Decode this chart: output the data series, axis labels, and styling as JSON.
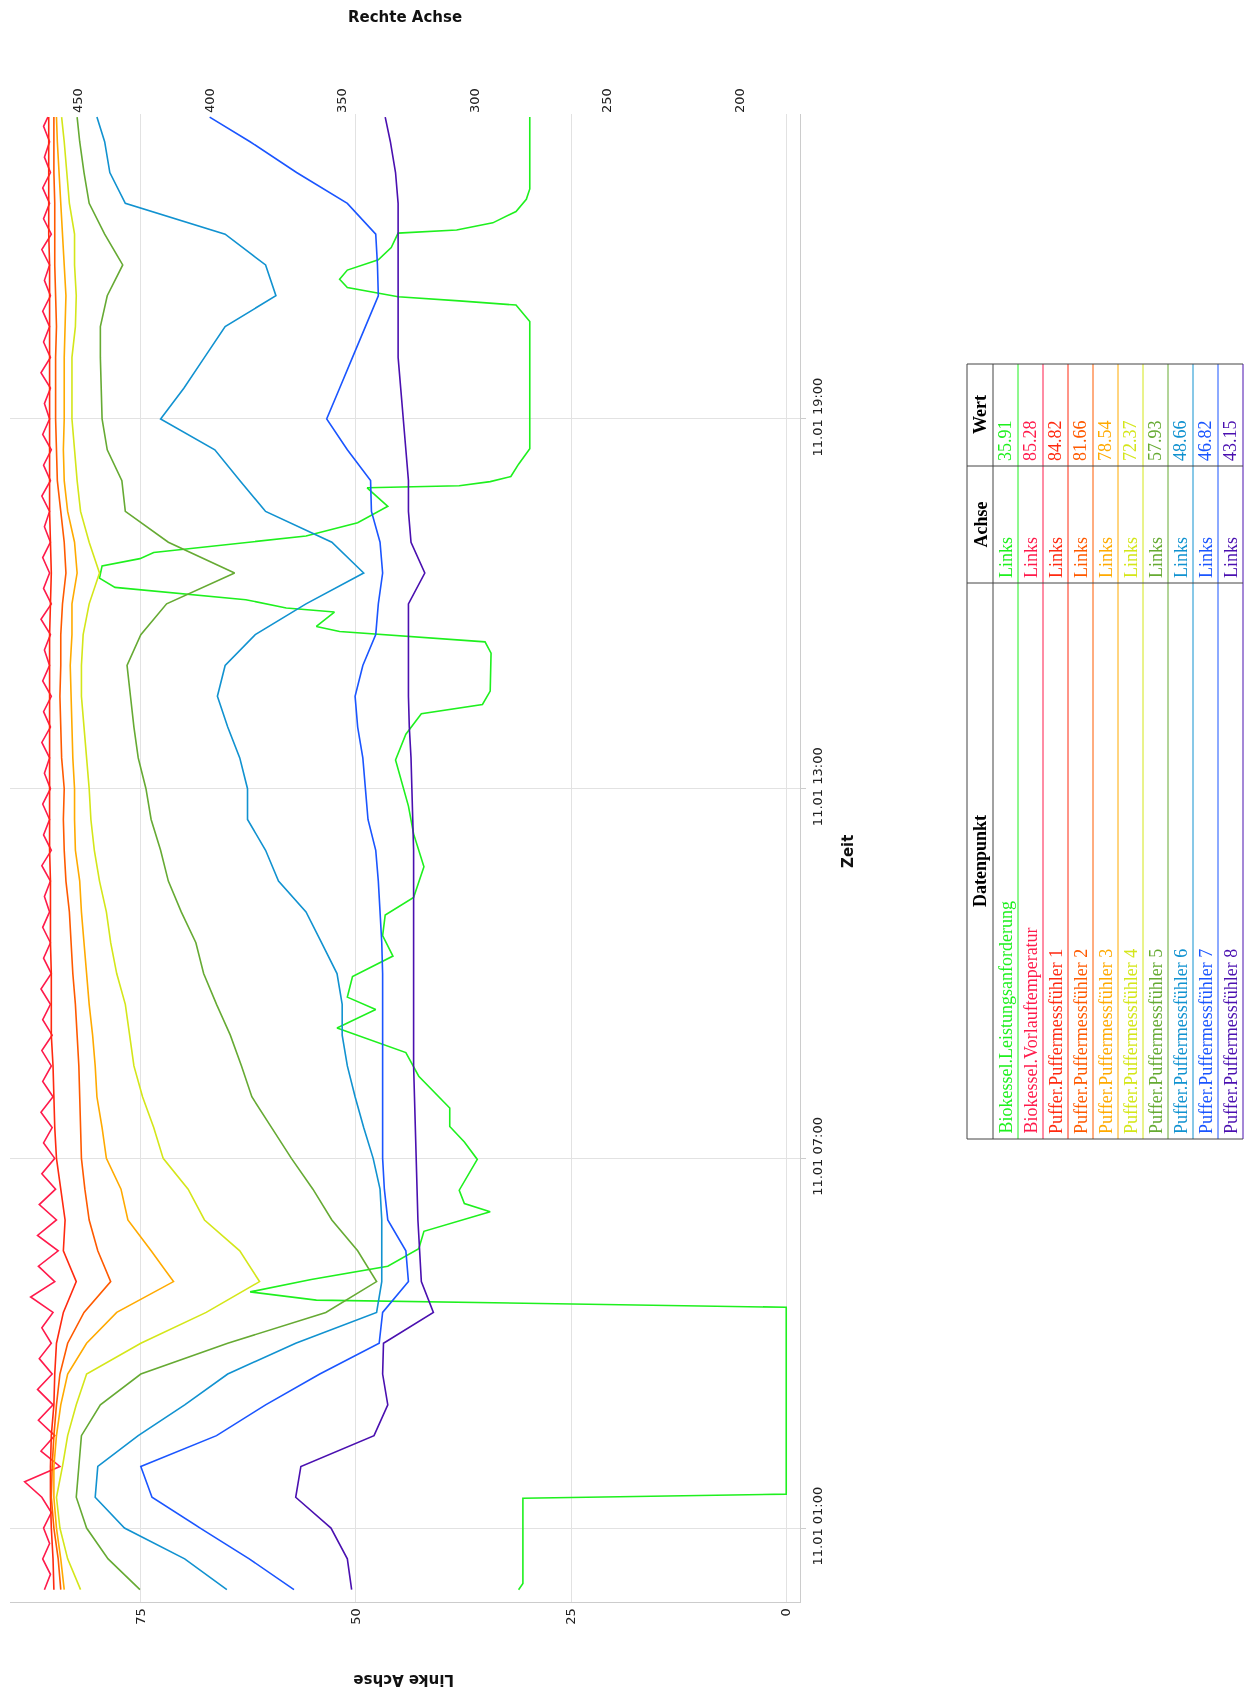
{
  "chart_data": {
    "type": "line",
    "orientation": "horizontal",
    "xlabel": "Linke Achse",
    "x2label": "Rechte Achse",
    "ylabel": "Zeit",
    "xlim": [
      90.2,
      -1.6
    ],
    "xticks": [
      0,
      25,
      50,
      75
    ],
    "x2lim": [
      475.4,
      177.2
    ],
    "x2ticks": [
      450,
      400,
      350,
      300,
      250,
      200
    ],
    "ylim": [
      "--01-10T23:48",
      "--01-11T23:57"
    ],
    "yticks": [
      {
        "value": "--01-11T01:00",
        "label": "11.01 01:00"
      },
      {
        "value": "--01-11T07:00",
        "label": "11.01 07:00"
      },
      {
        "value": "--01-11T13:00",
        "label": "11.01 13:00"
      },
      {
        "value": "--01-11T19:00",
        "label": "11.01 19:00"
      }
    ],
    "grid": true,
    "x": [
      "--01-11T00:00",
      "--01-11T00:30",
      "--01-11T01:00",
      "--01-11T01:30",
      "--01-11T02:00",
      "--01-11T02:30",
      "--01-11T03:00",
      "--01-11T03:30",
      "--01-11T04:00",
      "--01-11T04:30",
      "--01-11T05:00",
      "--01-11T05:30",
      "--01-11T06:00",
      "--01-11T06:30",
      "--01-11T07:00",
      "--01-11T07:30",
      "--01-11T08:00",
      "--01-11T08:30",
      "--01-11T09:00",
      "--01-11T09:30",
      "--01-11T10:00",
      "--01-11T10:30",
      "--01-11T11:00",
      "--01-11T11:30",
      "--01-11T12:00",
      "--01-11T12:30",
      "--01-11T13:00",
      "--01-11T13:30",
      "--01-11T14:00",
      "--01-11T14:30",
      "--01-11T15:00",
      "--01-11T15:30",
      "--01-11T16:00",
      "--01-11T16:30",
      "--01-11T17:00",
      "--01-11T17:30",
      "--01-11T18:00",
      "--01-11T18:30",
      "--01-11T19:00",
      "--01-11T19:30",
      "--01-11T20:00",
      "--01-11T20:30",
      "--01-11T21:00",
      "--01-11T21:30",
      "--01-11T22:00",
      "--01-11T22:30",
      "--01-11T23:00",
      "--01-11T23:30",
      "--01-11T23:54"
    ],
    "series": [
      {
        "name": "Biokessel.Leistungsanforderung",
        "color": "#1ef01e",
        "x": [
          "--01-11T00:00",
          "--01-11T00:06",
          "--01-11T01:29",
          "--01-11T01:33",
          "--01-11T04:35",
          "--01-11T04:42",
          "--01-11T04:50",
          "--01-11T05:02",
          "--01-11T05:15",
          "--01-11T05:32",
          "--01-11T05:49",
          "--01-11T06:08",
          "--01-11T06:16",
          "--01-11T06:29",
          "--01-11T06:59",
          "--01-11T07:16",
          "--01-11T07:31",
          "--01-11T07:49",
          "--01-11T08:20",
          "--01-11T08:43",
          "--01-11T09:07",
          "--01-11T09:25",
          "--01-11T09:37",
          "--01-11T09:57",
          "--01-11T10:17",
          "--01-11T10:37",
          "--01-11T10:57",
          "--01-11T11:14",
          "--01-11T11:44",
          "--01-11T12:16",
          "--01-11T12:43",
          "--01-11T13:28",
          "--01-11T13:53",
          "--01-11T14:13",
          "--01-11T14:22",
          "--01-11T14:35",
          "--01-11T15:12",
          "--01-11T15:23",
          "--01-11T15:33",
          "--01-11T15:38",
          "--01-11T15:52",
          "--01-11T15:56",
          "--01-11T16:04",
          "--01-11T16:16",
          "--01-11T16:25",
          "--01-11T16:37",
          "--01-11T16:44",
          "--01-11T16:50",
          "--01-11T17:06",
          "--01-11T17:19",
          "--01-11T17:35",
          "--01-11T17:53",
          "--01-11T17:55",
          "--01-11T17:59",
          "--01-11T18:04",
          "--01-11T18:16",
          "--01-11T18:31",
          "--01-11T20:35",
          "--01-11T20:51",
          "--01-11T20:55",
          "--01-11T20:59",
          "--01-11T21:08",
          "--01-11T21:16",
          "--01-11T21:25",
          "--01-11T21:35",
          "--01-11T21:47",
          "--01-11T22:01",
          "--01-11T22:04",
          "--01-11T22:11",
          "--01-11T22:22",
          "--01-11T22:34",
          "--01-11T22:44",
          "--01-11T23:54"
        ],
        "values": [
          31.1,
          30.6,
          30.6,
          0,
          0,
          54.6,
          62.3,
          55.2,
          46.3,
          42.7,
          42.1,
          34.4,
          37.4,
          38.0,
          35.9,
          37.4,
          39.1,
          39.1,
          42.7,
          44.2,
          52.2,
          47.7,
          51.0,
          50.4,
          45.7,
          46.9,
          46.6,
          43.3,
          42.1,
          43.3,
          43.9,
          45.4,
          44.2,
          42.4,
          35.3,
          34.4,
          34.3,
          35.0,
          51.9,
          54.6,
          52.5,
          58.1,
          62.8,
          78.0,
          79.8,
          79.5,
          75.1,
          73.5,
          55.8,
          49.8,
          46.3,
          48.7,
          38.0,
          34.4,
          32.0,
          31.1,
          29.8,
          29.8,
          31.4,
          38.0,
          45.1,
          51.0,
          51.9,
          51.0,
          47.4,
          45.9,
          45.1,
          38.3,
          34.1,
          31.4,
          30.2,
          29.8,
          29.8
        ]
      },
      {
        "name": "Biokessel.Vorlauftemperatur",
        "color": "#ff1a4b",
        "x": [
          "--01-11T00:00",
          "--01-11T00:15",
          "--01-11T00:30",
          "--01-11T00:45",
          "--01-11T01:00",
          "--01-11T01:15",
          "--01-11T01:30",
          "--01-11T01:45",
          "--01-11T02:00",
          "--01-11T02:15",
          "--01-11T02:30",
          "--01-11T02:45",
          "--01-11T03:00",
          "--01-11T03:15",
          "--01-11T03:30",
          "--01-11T03:45",
          "--01-11T04:00",
          "--01-11T04:15",
          "--01-11T04:30",
          "--01-11T04:45",
          "--01-11T05:00",
          "--01-11T05:15",
          "--01-11T05:30",
          "--01-11T05:45",
          "--01-11T06:00",
          "--01-11T06:15",
          "--01-11T06:30",
          "--01-11T06:45",
          "--01-11T07:00",
          "--01-11T07:15",
          "--01-11T07:30",
          "--01-11T07:45",
          "--01-11T08:00",
          "--01-11T08:15",
          "--01-11T08:30",
          "--01-11T08:45",
          "--01-11T09:00",
          "--01-11T09:15",
          "--01-11T09:30",
          "--01-11T09:45",
          "--01-11T10:00",
          "--01-11T10:15",
          "--01-11T10:30",
          "--01-11T10:45",
          "--01-11T11:00",
          "--01-11T11:15",
          "--01-11T11:30",
          "--01-11T11:45",
          "--01-11T12:00",
          "--01-11T12:15",
          "--01-11T12:30",
          "--01-11T12:45",
          "--01-11T13:00",
          "--01-11T13:15",
          "--01-11T13:30",
          "--01-11T13:45",
          "--01-11T14:00",
          "--01-11T14:15",
          "--01-11T14:30",
          "--01-11T14:45",
          "--01-11T15:00",
          "--01-11T15:15",
          "--01-11T15:30",
          "--01-11T15:45",
          "--01-11T16:00",
          "--01-11T16:15",
          "--01-11T16:30",
          "--01-11T16:45",
          "--01-11T17:00",
          "--01-11T17:15",
          "--01-11T17:30",
          "--01-11T17:45",
          "--01-11T18:00",
          "--01-11T18:15",
          "--01-11T18:30",
          "--01-11T18:45",
          "--01-11T19:00",
          "--01-11T19:15",
          "--01-11T19:30",
          "--01-11T19:45",
          "--01-11T20:00",
          "--01-11T20:15",
          "--01-11T20:30",
          "--01-11T20:45",
          "--01-11T21:00",
          "--01-11T21:15",
          "--01-11T21:30",
          "--01-11T21:45",
          "--01-11T22:00",
          "--01-11T22:15",
          "--01-11T22:30",
          "--01-11T22:45",
          "--01-11T23:00",
          "--01-11T23:15",
          "--01-11T23:30",
          "--01-11T23:45",
          "--01-11T23:54"
        ],
        "values": [
          86.2,
          85.5,
          86.4,
          85.6,
          86.3,
          85.4,
          86.5,
          88.5,
          84.4,
          86.6,
          85.0,
          86.9,
          85.2,
          87.0,
          85.3,
          86.8,
          85.4,
          86.5,
          85.2,
          87.8,
          85.0,
          86.9,
          84.6,
          87.0,
          84.8,
          86.8,
          84.9,
          86.5,
          85.0,
          86.3,
          85.3,
          86.6,
          85.2,
          86.4,
          85.4,
          86.5,
          85.3,
          86.4,
          85.5,
          86.6,
          85.4,
          86.3,
          85.5,
          86.4,
          85.6,
          86.2,
          85.5,
          86.5,
          85.4,
          86.3,
          85.6,
          86.4,
          85.5,
          86.2,
          85.6,
          86.5,
          85.5,
          86.3,
          85.4,
          86.4,
          85.6,
          86.2,
          85.5,
          86.6,
          85.4,
          86.3,
          85.6,
          86.4,
          85.5,
          86.2,
          85.6,
          86.5,
          85.5,
          86.3,
          85.4,
          86.4,
          85.6,
          86.2,
          85.5,
          86.6,
          85.5,
          86.3,
          85.6,
          86.4,
          85.5,
          86.2,
          85.6,
          86.5,
          85.4,
          86.3,
          85.6,
          86.4,
          85.5,
          86.2,
          85.6,
          86.3,
          85.8
        ]
      },
      {
        "name": "Puffer.Puffermessfühler 1",
        "color": "#ff2a10",
        "values": [
          85.1,
          85.2,
          85.4,
          85.5,
          85.5,
          85.4,
          85.1,
          85.0,
          84.8,
          84.0,
          82.5,
          84.0,
          83.8,
          84.3,
          84.8,
          85.0,
          85.1,
          85.2,
          85.4,
          85.4,
          85.4,
          85.5,
          85.5,
          85.5,
          85.6,
          85.6,
          85.6,
          85.6,
          85.6,
          85.6,
          85.6,
          85.6,
          85.5,
          85.4,
          85.5,
          85.6,
          85.6,
          85.6,
          85.6,
          85.6,
          85.6,
          85.6,
          85.6,
          85.6,
          85.7,
          85.7,
          85.7,
          85.7,
          85.7
        ]
      },
      {
        "name": "Puffer.Puffermessfühler 2",
        "color": "#ff5a00",
        "values": [
          84.3,
          84.6,
          85.1,
          85.4,
          85.3,
          85.1,
          84.8,
          84.4,
          83.5,
          81.6,
          78.5,
          80.0,
          81.0,
          81.5,
          81.9,
          82.0,
          82.1,
          82.2,
          82.4,
          82.6,
          82.9,
          83.1,
          83.3,
          83.7,
          83.9,
          84.0,
          83.9,
          84.2,
          84.3,
          84.4,
          84.3,
          84.3,
          84.1,
          83.7,
          83.9,
          84.3,
          84.7,
          84.8,
          84.9,
          84.9,
          84.9,
          84.8,
          84.9,
          85.0,
          85.0,
          85.0,
          85.1,
          85.1,
          85.1
        ]
      },
      {
        "name": "Puffer.Puffermessfühler 3",
        "color": "#ffaa00",
        "values": [
          83.9,
          84.3,
          84.8,
          85.1,
          85.1,
          84.8,
          84.3,
          83.5,
          81.3,
          77.8,
          71.2,
          73.8,
          76.5,
          77.3,
          79.0,
          79.5,
          80.1,
          80.3,
          80.6,
          81.0,
          81.3,
          81.6,
          81.9,
          82.1,
          82.6,
          82.7,
          82.7,
          82.9,
          83.0,
          83.1,
          83.2,
          83.0,
          83.0,
          82.4,
          82.7,
          83.5,
          83.9,
          84.0,
          83.9,
          83.9,
          83.9,
          83.8,
          83.7,
          83.9,
          84.1,
          84.3,
          84.5,
          84.7,
          84.8
        ]
      },
      {
        "name": "Puffer.Puffermessfühler 4",
        "color": "#d4e619",
        "values": [
          82.0,
          83.5,
          84.4,
          84.8,
          84.1,
          83.5,
          82.5,
          81.3,
          75.0,
          67.4,
          61.2,
          63.5,
          67.6,
          69.5,
          72.4,
          73.5,
          74.8,
          75.8,
          76.3,
          76.8,
          77.8,
          78.5,
          79.0,
          79.8,
          80.4,
          80.8,
          81.0,
          81.3,
          81.6,
          81.9,
          81.9,
          81.7,
          81.0,
          79.8,
          81.0,
          82.0,
          82.4,
          82.7,
          83.0,
          83.0,
          83.0,
          82.6,
          82.5,
          82.7,
          82.7,
          83.3,
          83.6,
          83.9,
          84.2
        ]
      },
      {
        "name": "Puffer.Puffermessfühler 5",
        "color": "#66aa33",
        "values": [
          75.1,
          78.8,
          81.3,
          82.5,
          82.2,
          81.9,
          79.7,
          75.0,
          64.9,
          53.5,
          47.6,
          49.8,
          52.8,
          55.0,
          57.5,
          59.8,
          62.1,
          63.3,
          64.6,
          66.2,
          67.7,
          68.6,
          70.3,
          71.8,
          72.7,
          73.8,
          74.4,
          75.3,
          75.8,
          76.2,
          76.6,
          75.0,
          72.0,
          64.1,
          71.8,
          76.8,
          77.2,
          78.9,
          79.5,
          79.6,
          79.7,
          79.7,
          78.9,
          77.1,
          79.2,
          81.0,
          81.6,
          82.1,
          82.4
        ]
      },
      {
        "name": "Puffer.Puffermessfühler 6",
        "color": "#1192d0",
        "values": [
          65.0,
          69.9,
          76.9,
          80.3,
          80.0,
          75.3,
          69.9,
          64.9,
          57.0,
          47.6,
          47.0,
          47.0,
          47.0,
          47.2,
          48.0,
          49.1,
          50.1,
          51.0,
          51.6,
          51.6,
          52.2,
          54.0,
          55.8,
          59.0,
          60.5,
          62.6,
          62.6,
          63.5,
          64.9,
          66.1,
          65.2,
          61.7,
          55.8,
          49.1,
          52.8,
          60.5,
          63.5,
          66.4,
          72.7,
          70.0,
          67.6,
          65.2,
          59.3,
          60.5,
          65.2,
          76.8,
          78.6,
          79.2,
          80.1
        ]
      },
      {
        "name": "Puffer.Puffermessfühler 7",
        "color": "#1a55ff",
        "values": [
          57.2,
          62.4,
          68.1,
          73.7,
          75.0,
          66.2,
          60.5,
          54.2,
          47.3,
          46.9,
          43.9,
          44.2,
          46.3,
          46.7,
          46.9,
          46.9,
          46.9,
          46.9,
          46.9,
          46.9,
          46.9,
          47.0,
          47.2,
          47.4,
          47.7,
          48.6,
          48.9,
          49.2,
          49.8,
          50.1,
          49.2,
          47.7,
          47.4,
          46.9,
          47.2,
          48.2,
          48.3,
          51.0,
          53.4,
          51.9,
          50.4,
          48.9,
          47.4,
          47.5,
          47.7,
          51.0,
          56.9,
          62.3,
          67.0
        ]
      },
      {
        "name": "Puffer.Puffermessfühler 8",
        "color": "#4a10b0",
        "values": [
          50.5,
          51.0,
          52.9,
          57.0,
          56.4,
          47.9,
          46.3,
          46.9,
          46.8,
          41.0,
          42.4,
          42.6,
          42.8,
          42.9,
          43.0,
          43.1,
          43.2,
          43.3,
          43.3,
          43.3,
          43.3,
          43.3,
          43.3,
          43.3,
          43.3,
          43.4,
          43.5,
          43.6,
          43.8,
          43.9,
          43.9,
          43.9,
          43.9,
          42.0,
          43.6,
          43.9,
          43.9,
          44.2,
          44.5,
          44.8,
          45.1,
          45.1,
          45.1,
          45.1,
          45.1,
          45.1,
          45.4,
          46.0,
          46.6
        ]
      }
    ],
    "annotations": [
      "Datenpunkt",
      "Achse",
      "Wert",
      "Links",
      "35.91",
      "Links",
      "85.28",
      "Links",
      "84.82",
      "Links",
      "81.66",
      "Links",
      "78.54",
      "Links",
      "72.37",
      "Links",
      "57.93",
      "Links",
      "48.66",
      "Links",
      "46.82",
      "Links",
      "43.15"
    ]
  }
}
